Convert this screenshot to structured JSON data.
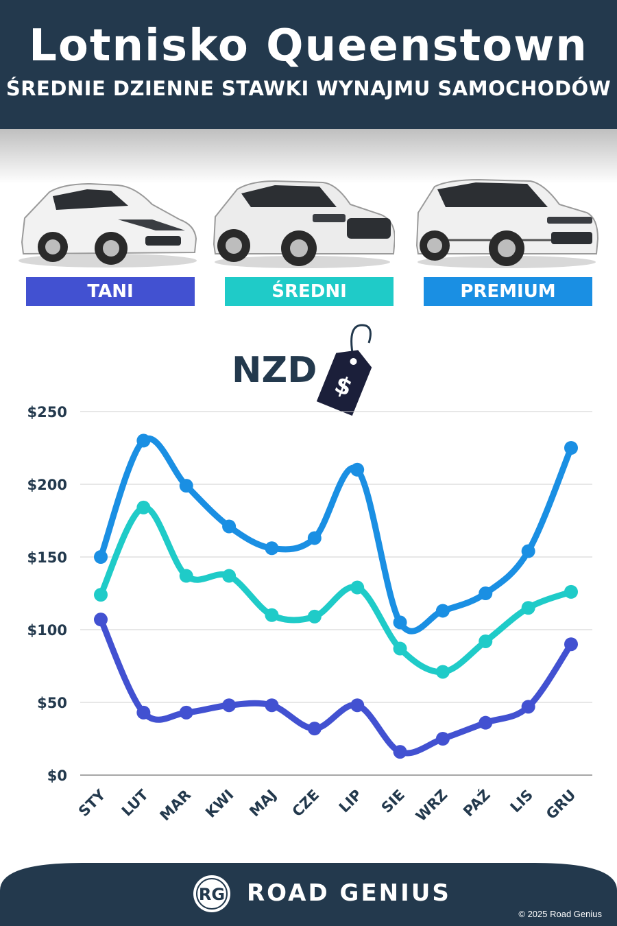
{
  "header": {
    "title": "Lotnisko Queenstown",
    "subtitle": "ŚREDNIE DZIENNE STAWKI WYNAJMU SAMOCHODÓW"
  },
  "categories": [
    {
      "label": "TANI",
      "color": "#4251d1",
      "icon": "hatchback-car"
    },
    {
      "label": "ŚREDNI",
      "color": "#1fcbc8",
      "icon": "suv-car"
    },
    {
      "label": "PREMIUM",
      "color": "#1a8fe3",
      "icon": "luxury-suv-car"
    }
  ],
  "currency_label": "NZD",
  "price_tag_symbol": "$",
  "chart_data": {
    "type": "line",
    "categories": [
      "STY",
      "LUT",
      "MAR",
      "KWI",
      "MAJ",
      "CZE",
      "LIP",
      "SIE",
      "WRZ",
      "PAŹ",
      "LIS",
      "GRU"
    ],
    "series": [
      {
        "name": "PREMIUM",
        "color": "#1a8fe3",
        "values": [
          150,
          230,
          199,
          171,
          156,
          163,
          210,
          105,
          113,
          125,
          154,
          225
        ]
      },
      {
        "name": "ŚREDNI",
        "color": "#1fcbc8",
        "values": [
          124,
          184,
          137,
          137,
          110,
          109,
          129,
          87,
          71,
          92,
          115,
          126
        ]
      },
      {
        "name": "TANI",
        "color": "#4251d1",
        "values": [
          107,
          43,
          43,
          48,
          48,
          32,
          48,
          16,
          25,
          36,
          47,
          90
        ]
      }
    ],
    "yticks": [
      "$0",
      "$50",
      "$100",
      "$150",
      "$200",
      "$250"
    ],
    "ylim": [
      0,
      250
    ],
    "grid": true
  },
  "footer": {
    "logo_text": "RG",
    "brand": "ROAD GENIUS",
    "copyright": "© 2025 Road Genius",
    "color": "#23394d"
  }
}
